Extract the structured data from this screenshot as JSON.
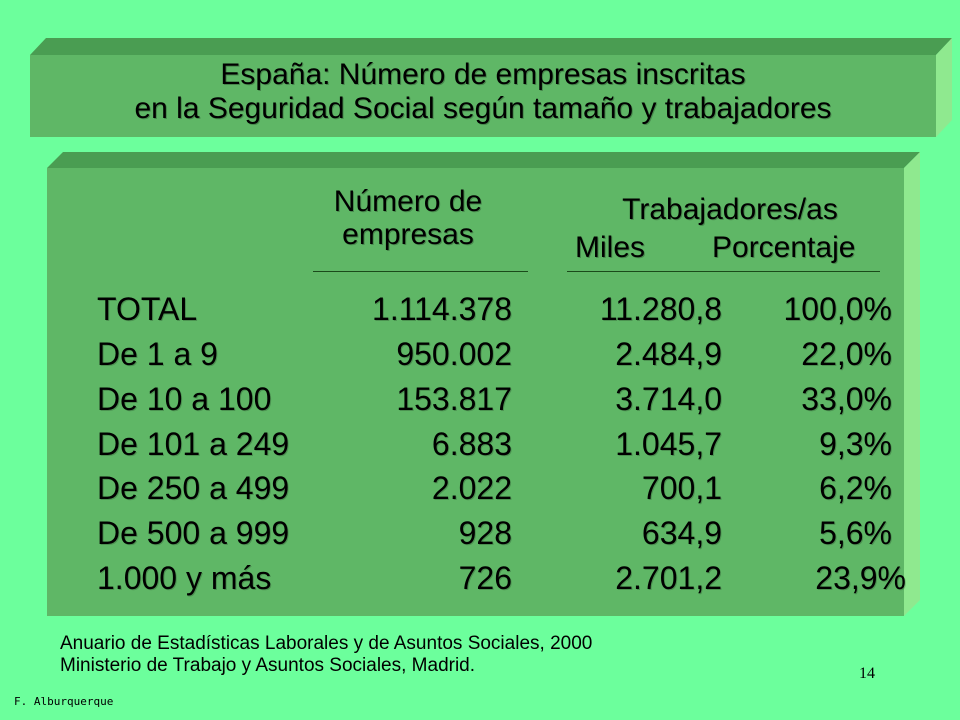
{
  "title": {
    "line1": "España: Número de empresas inscritas",
    "line2": "en la Seguridad Social según tamaño y trabajadores"
  },
  "table": {
    "header_empresas_line1": "Número de",
    "header_empresas_line2": "empresas",
    "header_trabajadores": "Trabajadores/as",
    "header_miles": "Miles",
    "header_porcentaje": "Porcentaje",
    "rows": [
      {
        "label": "TOTAL",
        "empresas": "1.114.378",
        "miles": "11.280,8",
        "porcentaje": "100,0%"
      },
      {
        "label": "De 1 a 9",
        "empresas": "950.002",
        "miles": "2.484,9",
        "porcentaje": "22,0%"
      },
      {
        "label": "De 10 a 100",
        "empresas": "153.817",
        "miles": "3.714,0",
        "porcentaje": "33,0%"
      },
      {
        "label": "De 101 a 249",
        "empresas": "6.883",
        "miles": "1.045,7",
        "porcentaje": "9,3%"
      },
      {
        "label": "De 250 a 499",
        "empresas": "2.022",
        "miles": "700,1",
        "porcentaje": "6,2%"
      },
      {
        "label": "De 500 a 999",
        "empresas": "928",
        "miles": "634,9",
        "porcentaje": "5,6%"
      },
      {
        "label": "1.000 y más",
        "empresas": "726",
        "miles": "2.701,2",
        "porcentaje": "23,9%"
      }
    ]
  },
  "source": {
    "line1": "Anuario de Estadísticas Laborales y de Asuntos Sociales, 2000",
    "line2": "Ministerio de Trabajo y Asuntos Sociales, Madrid."
  },
  "page_number": "14",
  "author": "F. Alburquerque",
  "colors": {
    "background": "#6cff9c",
    "panel_face": "#5fb766",
    "panel_top": "#4a9d52",
    "panel_side": "#8fe98f"
  }
}
